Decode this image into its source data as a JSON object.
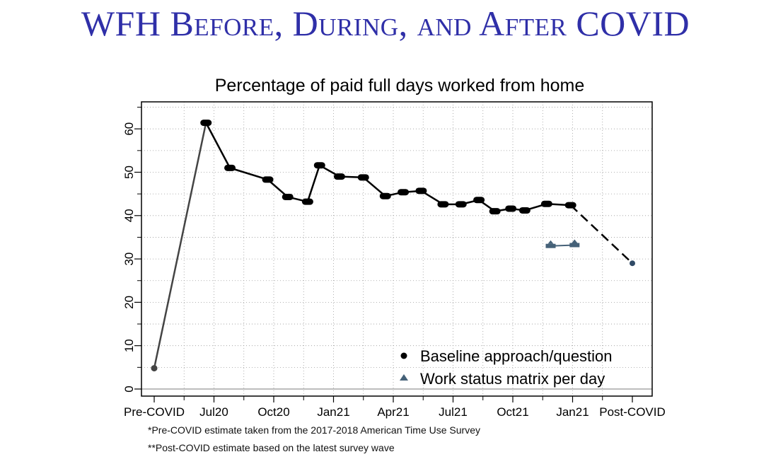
{
  "slide": {
    "title": "WFH Before, During, and After COVID"
  },
  "chart_data": {
    "type": "line",
    "title": "Percentage of paid full days worked from home",
    "xlabel": "",
    "ylabel": "",
    "ylim": [
      0,
      65
    ],
    "yticks": [
      0,
      10,
      20,
      30,
      40,
      50,
      60
    ],
    "xticks": [
      {
        "label": "Pre-COVID",
        "x": 0
      },
      {
        "label": "Jul20",
        "x": 3
      },
      {
        "label": "Oct20",
        "x": 6
      },
      {
        "label": "Jan21",
        "x": 9
      },
      {
        "label": "Apr21",
        "x": 12
      },
      {
        "label": "Jul21",
        "x": 15
      },
      {
        "label": "Oct21",
        "x": 18
      },
      {
        "label": "Jan21",
        "x": 21
      },
      {
        "label": "Post-COVID",
        "x": 24
      }
    ],
    "grid": true,
    "legend_position": "bottom-right",
    "series": [
      {
        "name": "Baseline approach/question",
        "marker": "circle",
        "color": "#000000",
        "x": [
          2.6,
          3.8,
          5.7,
          6.7,
          7.7,
          8.3,
          9.3,
          10.5,
          11.6,
          12.5,
          13.4,
          14.5,
          15.4,
          16.3,
          17.1,
          17.9,
          18.6,
          19.7,
          20.9
        ],
        "y": [
          61.4,
          51.0,
          48.3,
          44.3,
          43.2,
          51.6,
          49.0,
          48.8,
          44.5,
          45.4,
          45.7,
          42.6,
          42.6,
          43.6,
          41.0,
          41.6,
          41.2,
          42.7,
          42.4
        ]
      },
      {
        "name": "Work status matrix per day",
        "marker": "triangle",
        "color": "#456178",
        "x": [
          19.9,
          21.1
        ],
        "y": [
          33.0,
          33.2
        ]
      }
    ],
    "pre_covid": {
      "x": 0,
      "y": 4.8
    },
    "post_covid": {
      "x": 24,
      "y": 29.0
    }
  },
  "footnotes": [
    "*Pre-COVID estimate taken from the 2017-2018 American Time Use Survey",
    "**Post-COVID estimate based on the latest survey wave"
  ],
  "colors": {
    "title": "#2f2fa8",
    "pre_line": "#444444",
    "post_point": "#2f4a66",
    "triangle": "#456178"
  }
}
